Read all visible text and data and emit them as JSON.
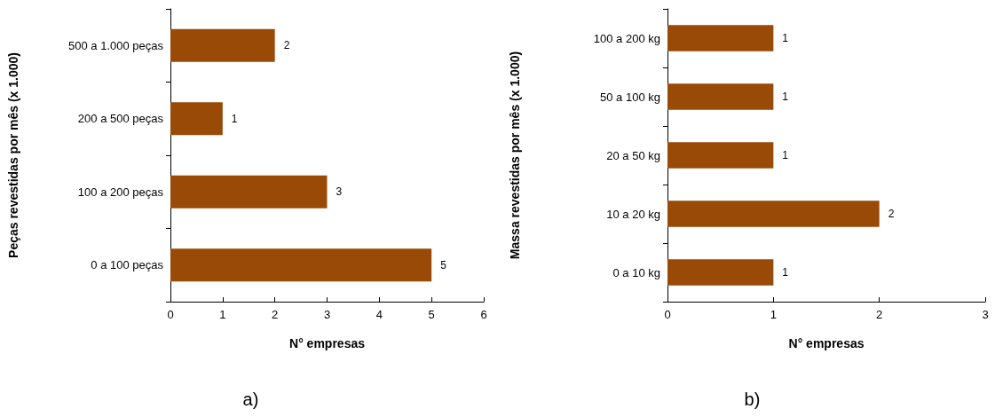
{
  "chart_data": [
    {
      "type": "bar",
      "orientation": "horizontal",
      "categories": [
        "500 a 1.000 peças",
        "200 a 500 peças",
        "100 a 200 peças",
        "0 a 100 peças"
      ],
      "values": [
        2,
        1,
        3,
        5
      ],
      "color": "#994a07",
      "xlim": [
        0,
        6
      ],
      "xticks": [
        0,
        1,
        2,
        3,
        4,
        5,
        6
      ],
      "xlabel": "N° empresas",
      "ylabel": "Peças revestidas por mês (x 1.000)",
      "data_labels": true,
      "grid": false,
      "annotations": [
        "a)"
      ]
    },
    {
      "type": "bar",
      "orientation": "horizontal",
      "categories": [
        "100 a 200 kg",
        "50 a 100 kg",
        "20 a 50 kg",
        "10 a 20 kg",
        "0 a 10 kg"
      ],
      "values": [
        1,
        1,
        1,
        2,
        1
      ],
      "color": "#994a07",
      "xlim": [
        0,
        3
      ],
      "xticks": [
        0,
        1,
        2,
        3
      ],
      "xlabel": "N° empresas",
      "ylabel": "Massa revestidas por mês (x 1.000)",
      "data_labels": true,
      "grid": false,
      "annotations": [
        "b)"
      ]
    }
  ]
}
